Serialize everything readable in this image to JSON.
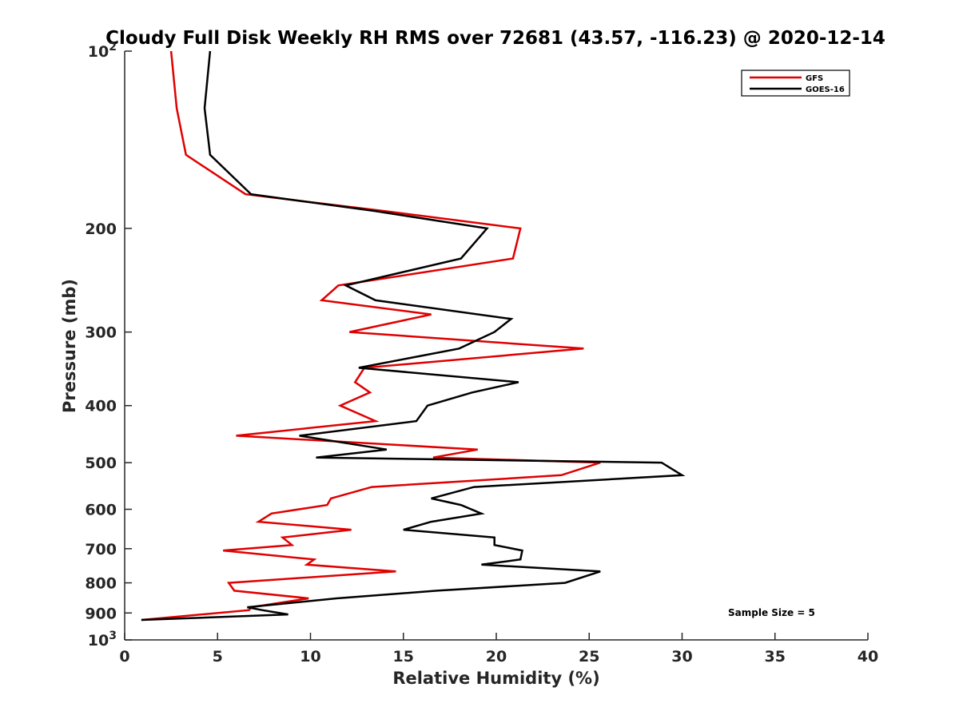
{
  "chart_data": {
    "type": "line",
    "title": "Cloudy Full Disk Weekly RH RMS over 72681 (43.57, -116.23) @ 2020-12-14",
    "xlabel": "Relative Humidity (%)",
    "ylabel": "Pressure (mb)",
    "xlim": [
      0,
      40
    ],
    "ylim": [
      100,
      1000
    ],
    "yscale": "log",
    "y_reversed": true,
    "grid": false,
    "legend_position": "top-right",
    "x_ticks": [
      0,
      5,
      10,
      15,
      20,
      25,
      30,
      35,
      40
    ],
    "x_tick_labels": [
      "0",
      "5",
      "10",
      "15",
      "20",
      "25",
      "30",
      "35",
      "40"
    ],
    "y_ticks": [
      100,
      200,
      300,
      400,
      500,
      600,
      700,
      800,
      900,
      1000
    ],
    "y_tick_labels": [
      "10^2",
      "200",
      "300",
      "400",
      "500",
      "600",
      "700",
      "800",
      "900",
      "10^3"
    ],
    "annotation": "Sample Size = 5",
    "series": [
      {
        "name": "GFS",
        "color": "#e00000",
        "points": [
          [
            2.5,
            100
          ],
          [
            2.8,
            125
          ],
          [
            3.3,
            150
          ],
          [
            6.5,
            175
          ],
          [
            14,
            187
          ],
          [
            21.3,
            200
          ],
          [
            20.9,
            225
          ],
          [
            11.5,
            250
          ],
          [
            10.6,
            265
          ],
          [
            16.5,
            280
          ],
          [
            12.1,
            300
          ],
          [
            24.7,
            320
          ],
          [
            12.9,
            345
          ],
          [
            12.4,
            365
          ],
          [
            13.2,
            380
          ],
          [
            11.6,
            400
          ],
          [
            13.5,
            425
          ],
          [
            6.0,
            450
          ],
          [
            19.0,
            475
          ],
          [
            16.6,
            490
          ],
          [
            25.6,
            500
          ],
          [
            23.5,
            525
          ],
          [
            13.3,
            550
          ],
          [
            11.1,
            575
          ],
          [
            10.9,
            590
          ],
          [
            7.9,
            610
          ],
          [
            7.2,
            630
          ],
          [
            12.2,
            650
          ],
          [
            8.5,
            670
          ],
          [
            9.0,
            690
          ],
          [
            5.3,
            705
          ],
          [
            10.2,
            730
          ],
          [
            9.8,
            745
          ],
          [
            14.6,
            765
          ],
          [
            5.6,
            800
          ],
          [
            5.9,
            825
          ],
          [
            9.9,
            850
          ],
          [
            6.8,
            880
          ],
          [
            6.7,
            890
          ],
          [
            0.9,
            925
          ]
        ]
      },
      {
        "name": "GOES-16",
        "color": "#000000",
        "points": [
          [
            4.6,
            100
          ],
          [
            4.3,
            125
          ],
          [
            4.6,
            150
          ],
          [
            6.8,
            175
          ],
          [
            13.5,
            187
          ],
          [
            19.5,
            200
          ],
          [
            18.1,
            225
          ],
          [
            11.9,
            250
          ],
          [
            13.5,
            265
          ],
          [
            20.8,
            285
          ],
          [
            19.9,
            300
          ],
          [
            18.0,
            320
          ],
          [
            12.6,
            345
          ],
          [
            21.2,
            365
          ],
          [
            18.7,
            380
          ],
          [
            16.3,
            400
          ],
          [
            15.7,
            425
          ],
          [
            9.4,
            450
          ],
          [
            14.1,
            475
          ],
          [
            10.3,
            490
          ],
          [
            28.9,
            500
          ],
          [
            30.0,
            525
          ],
          [
            18.8,
            550
          ],
          [
            16.5,
            575
          ],
          [
            18.1,
            590
          ],
          [
            19.2,
            610
          ],
          [
            16.5,
            630
          ],
          [
            15.0,
            650
          ],
          [
            19.9,
            670
          ],
          [
            19.9,
            690
          ],
          [
            21.4,
            705
          ],
          [
            21.3,
            730
          ],
          [
            19.2,
            745
          ],
          [
            25.6,
            765
          ],
          [
            23.7,
            800
          ],
          [
            16.8,
            825
          ],
          [
            11.4,
            850
          ],
          [
            6.6,
            880
          ],
          [
            7.4,
            890
          ],
          [
            8.8,
            905
          ],
          [
            0.9,
            925
          ]
        ]
      }
    ]
  }
}
